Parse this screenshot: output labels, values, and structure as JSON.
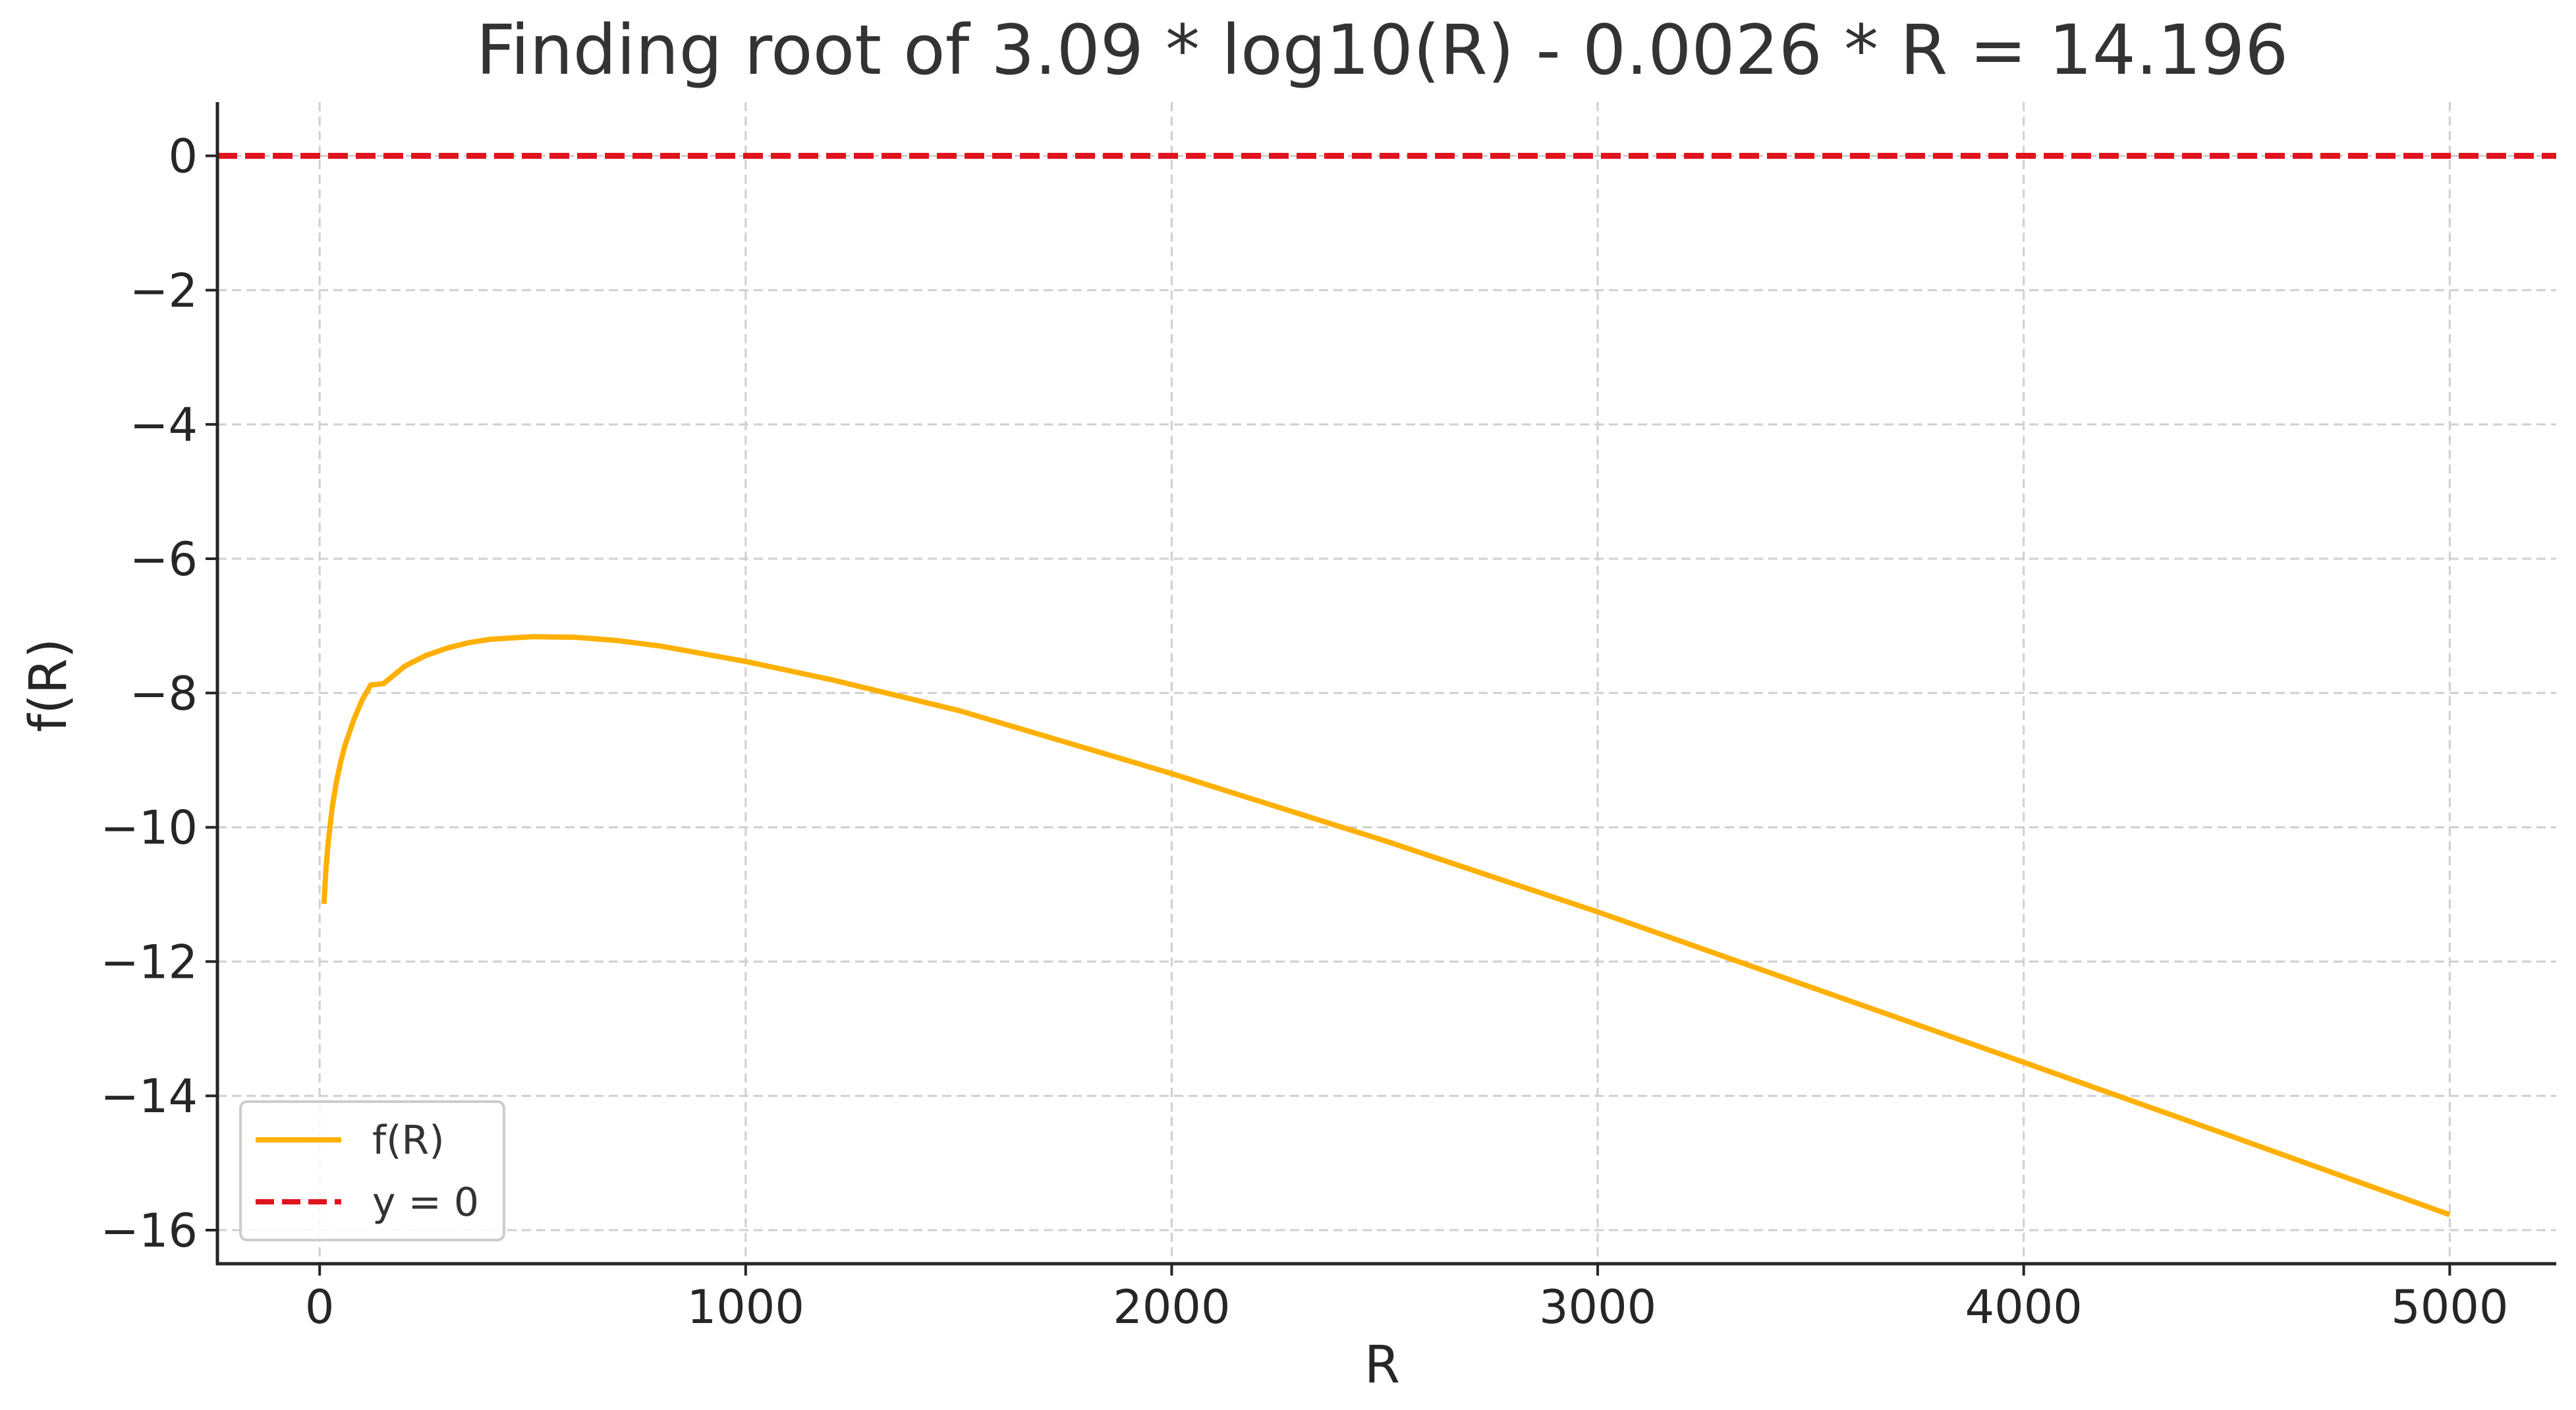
{
  "chart_data": {
    "type": "line",
    "title": "Finding root of 3.09 * log10(R) - 0.0026 * R = 14.196",
    "xlabel": "R",
    "ylabel": "f(R)",
    "xlim": [
      -240,
      5250
    ],
    "ylim": [
      -16.5,
      0.8
    ],
    "xticks": [
      0,
      1000,
      2000,
      3000,
      4000,
      5000
    ],
    "xtick_labels": [
      "0",
      "1000",
      "2000",
      "3000",
      "4000",
      "5000"
    ],
    "yticks": [
      0,
      -2,
      -4,
      -6,
      -8,
      -10,
      -12,
      -14,
      -16
    ],
    "ytick_labels": [
      "0",
      "−2",
      "−4",
      "−6",
      "−8",
      "−10",
      "−12",
      "−14",
      "−16"
    ],
    "grid": true,
    "legend_position": "lower-left",
    "series": [
      {
        "name": "f(R)",
        "color": "#FFB000",
        "style": "solid",
        "x": [
          10,
          15,
          20,
          30,
          40,
          50,
          60,
          80,
          100,
          120,
          150,
          200,
          250,
          300,
          350,
          400,
          500,
          600,
          700,
          800,
          1000,
          1200,
          1500,
          2000,
          2500,
          3000,
          3500,
          4000,
          4500,
          5000
        ],
        "y": [
          -11.14,
          -10.6,
          -10.23,
          -9.68,
          -9.3,
          -9.01,
          -8.77,
          -8.4,
          -8.1,
          -7.88,
          -7.86,
          -7.6,
          -7.44,
          -7.33,
          -7.25,
          -7.2,
          -7.16,
          -7.17,
          -7.22,
          -7.3,
          -7.53,
          -7.8,
          -8.26,
          -9.2,
          -10.2,
          -11.26,
          -12.38,
          -13.5,
          -14.63,
          -15.77
        ]
      },
      {
        "name": "y = 0",
        "color": "#E0141E",
        "style": "dashed",
        "x": [
          -240,
          5250
        ],
        "y": [
          0,
          0
        ]
      }
    ]
  }
}
